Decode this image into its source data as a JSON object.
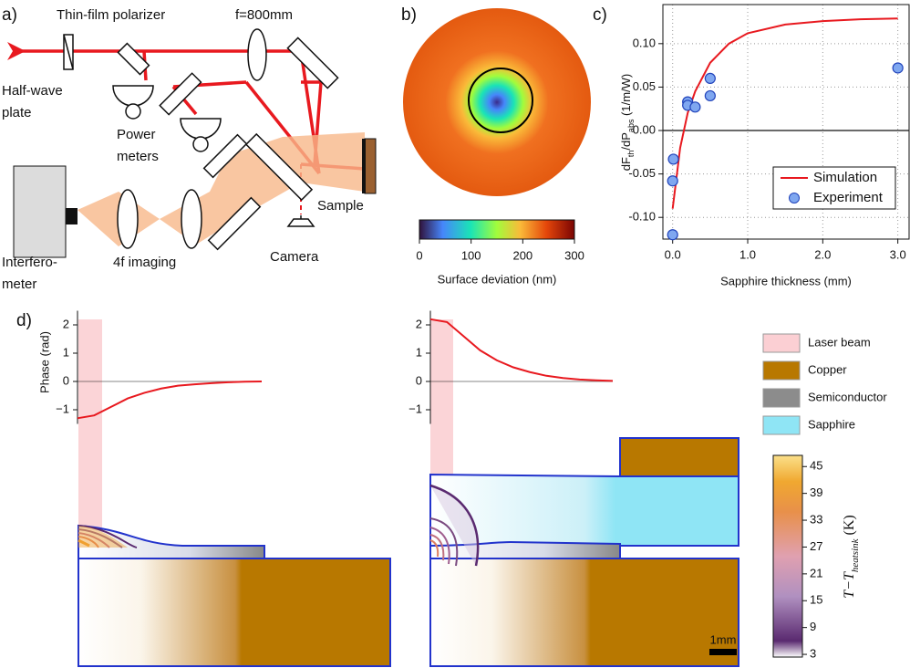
{
  "panel_a": {
    "label": "a)",
    "polarizer": "Thin-film polarizer",
    "lens": "f=800mm",
    "waveplate_1": "Half-wave",
    "waveplate_2": "plate",
    "power_1": "Power",
    "power_2": "meters",
    "sample": "Sample",
    "interferometer_1": "Interfero-",
    "interferometer_2": "meter",
    "imaging": "4f imaging",
    "camera": "Camera"
  },
  "panel_b": {
    "label": "b)",
    "colorbar_label": "Surface deviation (nm)",
    "colorbar_lim": [
      0,
      300
    ],
    "colorbar_ticks": [
      0,
      100,
      200,
      300
    ]
  },
  "chart_data": {
    "type": "line",
    "label": "c)",
    "x_label": "Sapphire thickness (mm)",
    "y_label": [
      "dF",
      "th",
      "/dP",
      "abs",
      " (1/m/W)"
    ],
    "xlim": [
      -0.13,
      3.15
    ],
    "ylim": [
      -0.125,
      0.145
    ],
    "xticks": [
      {
        "value": 0,
        "label": "0.0"
      },
      {
        "value": 1,
        "label": "1.0"
      },
      {
        "value": 2,
        "label": "2.0"
      },
      {
        "value": 3,
        "label": "3.0"
      }
    ],
    "yticks": [
      {
        "value": -0.1,
        "label": "-0.10"
      },
      {
        "value": -0.05,
        "label": "-0.05"
      },
      {
        "value": 0,
        "label": "0.00"
      },
      {
        "value": 0.05,
        "label": "0.05"
      },
      {
        "value": 0.1,
        "label": "0.10"
      }
    ],
    "grid": true,
    "legend": "lower right",
    "series": [
      {
        "name": "Simulation",
        "type": "line",
        "color": "#e8191f",
        "x": [
          0,
          0.1,
          0.2,
          0.3,
          0.5,
          0.75,
          1.0,
          1.5,
          2.0,
          2.5,
          3.0
        ],
        "values": [
          -0.09,
          -0.02,
          0.02,
          0.045,
          0.078,
          0.1,
          0.112,
          0.122,
          0.126,
          0.128,
          0.129
        ]
      },
      {
        "name": "Experiment",
        "type": "scatter",
        "color": "#7fa7f0",
        "x": [
          0.0,
          0.0,
          0.01,
          0.2,
          0.2,
          0.3,
          0.5,
          0.5,
          3.0
        ],
        "values": [
          -0.12,
          -0.058,
          -0.033,
          0.033,
          0.029,
          0.027,
          0.06,
          0.04,
          0.072
        ]
      }
    ]
  },
  "panel_d": {
    "label": "d)",
    "phase_label": "Phase (rad)",
    "phase_ylim": [
      -1.5,
      2.5
    ],
    "phase_yticks": [
      2,
      1,
      0,
      {
        "value": -1,
        "label": "−1"
      }
    ],
    "phase_left": [
      -1.3,
      -1.2,
      -0.9,
      -0.6,
      -0.4,
      -0.25,
      -0.15,
      -0.1,
      -0.06,
      -0.03,
      -0.01,
      0
    ],
    "phase_right": [
      2.2,
      2.1,
      1.6,
      1.1,
      0.75,
      0.5,
      0.33,
      0.2,
      0.12,
      0.07,
      0.04,
      0.02
    ],
    "legend": [
      "Laser beam",
      "Copper",
      "Semiconductor",
      "Sapphire"
    ],
    "colorbar_label": [
      "T",
      "−T",
      "heatsink",
      " (K)"
    ],
    "colorbar_lim": [
      2.4,
      47.5
    ],
    "colorbar_ticks": [
      3,
      9,
      15,
      21,
      27,
      33,
      39,
      45
    ],
    "scale_bar": "1mm"
  }
}
